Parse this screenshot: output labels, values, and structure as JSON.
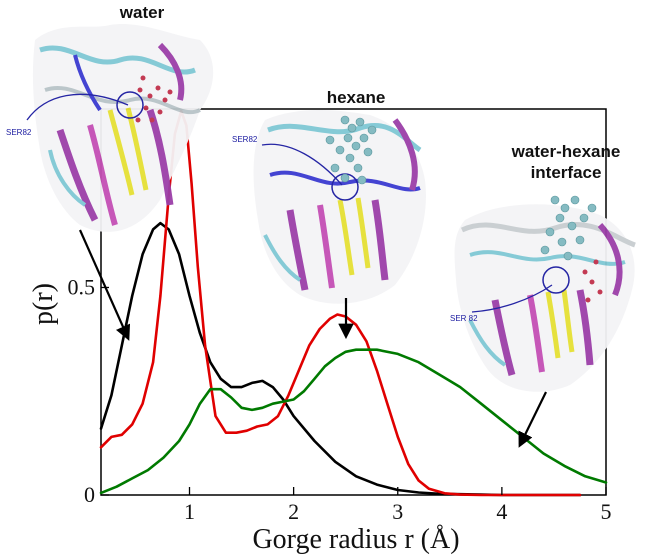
{
  "chart_data": {
    "type": "line",
    "title": "",
    "xlabel": "Gorge radius r (Å)",
    "ylabel": "p(r)",
    "xlim": [
      0.15,
      5.0
    ],
    "ylim": [
      0,
      0.93
    ],
    "x_ticks": [
      "1",
      "2",
      "3",
      "4",
      "5"
    ],
    "y_ticks": [
      "0",
      "0.5"
    ],
    "grid": false,
    "legend": "none",
    "series": [
      {
        "color": "#000000",
        "x": [
          0.15,
          0.25,
          0.35,
          0.45,
          0.55,
          0.65,
          0.72,
          0.8,
          0.9,
          1.0,
          1.1,
          1.2,
          1.3,
          1.4,
          1.5,
          1.6,
          1.7,
          1.8,
          1.9,
          2.0,
          2.2,
          2.4,
          2.6,
          2.8,
          3.0,
          3.2,
          3.4,
          3.6,
          3.8,
          4.0,
          4.3,
          4.6,
          4.75
        ],
        "y": [
          0.16,
          0.24,
          0.36,
          0.48,
          0.58,
          0.64,
          0.655,
          0.64,
          0.58,
          0.48,
          0.39,
          0.32,
          0.28,
          0.26,
          0.26,
          0.27,
          0.275,
          0.26,
          0.23,
          0.19,
          0.13,
          0.08,
          0.045,
          0.025,
          0.012,
          0.006,
          0.003,
          0.002,
          0.001,
          0.0,
          0.0,
          0.0,
          0.0
        ]
      },
      {
        "color": "#e00000",
        "x": [
          0.15,
          0.25,
          0.35,
          0.45,
          0.55,
          0.65,
          0.72,
          0.8,
          0.86,
          0.92,
          0.97,
          1.02,
          1.08,
          1.15,
          1.25,
          1.35,
          1.45,
          1.55,
          1.65,
          1.75,
          1.85,
          1.95,
          2.05,
          2.15,
          2.25,
          2.35,
          2.42,
          2.5,
          2.6,
          2.7,
          2.8,
          2.9,
          3.0,
          3.1,
          3.2,
          3.3,
          3.45,
          3.6,
          3.8,
          4.0,
          4.3,
          4.6,
          4.75
        ],
        "y": [
          0.115,
          0.14,
          0.145,
          0.17,
          0.22,
          0.32,
          0.48,
          0.72,
          0.87,
          0.925,
          0.89,
          0.75,
          0.55,
          0.36,
          0.19,
          0.15,
          0.15,
          0.155,
          0.165,
          0.17,
          0.19,
          0.24,
          0.3,
          0.36,
          0.4,
          0.425,
          0.435,
          0.43,
          0.41,
          0.37,
          0.3,
          0.22,
          0.14,
          0.075,
          0.035,
          0.015,
          0.004,
          0.001,
          0.0,
          0.0,
          0.0,
          0.0,
          0.0
        ]
      },
      {
        "color": "#007a00",
        "x": [
          0.15,
          0.3,
          0.45,
          0.6,
          0.75,
          0.9,
          1.0,
          1.1,
          1.2,
          1.3,
          1.4,
          1.5,
          1.6,
          1.7,
          1.8,
          1.9,
          2.0,
          2.1,
          2.2,
          2.3,
          2.4,
          2.5,
          2.6,
          2.7,
          2.8,
          3.0,
          3.2,
          3.4,
          3.6,
          3.8,
          4.0,
          4.2,
          4.4,
          4.6,
          4.8,
          5.0
        ],
        "y": [
          0.005,
          0.02,
          0.04,
          0.06,
          0.09,
          0.13,
          0.17,
          0.22,
          0.255,
          0.255,
          0.235,
          0.21,
          0.205,
          0.21,
          0.22,
          0.225,
          0.23,
          0.25,
          0.28,
          0.31,
          0.33,
          0.345,
          0.35,
          0.35,
          0.35,
          0.34,
          0.32,
          0.29,
          0.26,
          0.22,
          0.18,
          0.14,
          0.1,
          0.07,
          0.045,
          0.03
        ]
      }
    ],
    "insets": [
      {
        "title": "water",
        "residue_label": "SER82"
      },
      {
        "title": "hexane",
        "residue_label": "SER82"
      },
      {
        "title_lines": [
          "water-hexane",
          "interface"
        ],
        "residue_label": "SER 82"
      }
    ]
  }
}
